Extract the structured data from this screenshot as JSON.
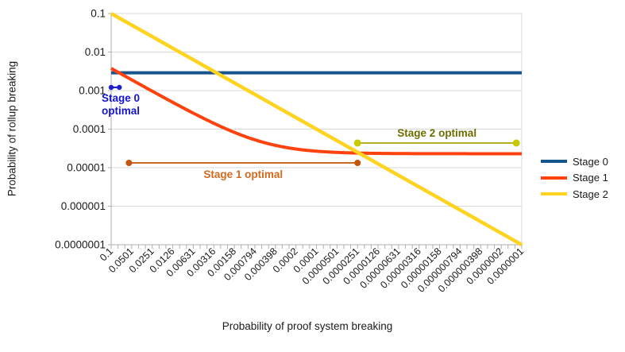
{
  "chart_data": {
    "type": "line",
    "xlabel": "Probability of proof system breaking",
    "ylabel": "Probability of rollup breaking",
    "x_scale": "log",
    "y_scale": "log",
    "x_range": [
      0.1,
      1e-07
    ],
    "y_range": [
      0.1,
      1e-07
    ],
    "grid": "horizontal",
    "legend_position": "right",
    "x_tick_labels": [
      "0.1",
      "0.0501",
      "0.0251",
      "0.0126",
      "0.00631",
      "0.00316",
      "0.00158",
      "0.000794",
      "0.000398",
      "0.0002",
      "0.0001",
      "0.0000501",
      "0.0000251",
      "0.0000126",
      "0.00000631",
      "0.00000316",
      "0.00000158",
      "0.000000794",
      "0.000000398",
      "0.0000002",
      "0.0000001"
    ],
    "y_tick_labels": [
      "0.1",
      "0.01",
      "0.001",
      "0.0001",
      "0.00001",
      "0.000001",
      "0.0000001"
    ],
    "series": [
      {
        "name": "Stage 0",
        "color": "#17538C",
        "model": "constant",
        "value": 0.0029,
        "width": 4
      },
      {
        "name": "Stage 1",
        "color": "#FF420E",
        "model": "linear_plus_floor",
        "slope": 0.0375,
        "floor": 2.3e-05,
        "width": 4
      },
      {
        "name": "Stage 2",
        "color": "#FFD320",
        "model": "identity",
        "width": 4.5
      }
    ],
    "annotations": [
      {
        "id": "stage0-optimal",
        "label": "Stage 0 optimal",
        "label_lines": [
          "Stage 0",
          "optimal"
        ],
        "x_start": 0.1,
        "x_end": 0.076,
        "y": 0.00121,
        "line_color": "#1F1FCC",
        "dot_color": "#1F1FCC",
        "text_color": "#1414CC",
        "dot_r": 3.2
      },
      {
        "id": "stage1-optimal",
        "label": "Stage 1 optimal",
        "label_lines": null,
        "x_start": 0.055,
        "x_end": 2.51e-05,
        "y": 1.33e-05,
        "line_color": "#C45508",
        "dot_color": "#C45508",
        "text_color": "#D2691E",
        "dot_r": 4
      },
      {
        "id": "stage2-optimal",
        "label": "Stage 2 optimal",
        "label_lines": null,
        "x_start": 2.51e-05,
        "x_end": 1.2e-07,
        "y": 4.36e-05,
        "line_color": "#AEA500",
        "dot_color": "#C6CA02",
        "text_color": "#6E6E00",
        "dot_r": 4.5
      }
    ]
  },
  "legend": {
    "items": [
      {
        "label": "Stage 0"
      },
      {
        "label": "Stage 1"
      },
      {
        "label": "Stage 2"
      }
    ]
  }
}
